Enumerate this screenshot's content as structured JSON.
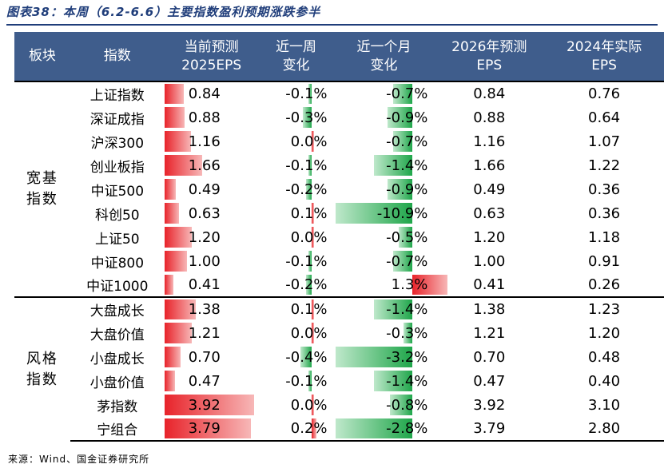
{
  "title": "图表38：本周（6.2-6.6）主要指数盈利预期涨跌参半",
  "headers": {
    "category": "板块",
    "index": "指数",
    "eps2025": [
      "当前预测",
      "2025EPS"
    ],
    "wchg": [
      "近一周",
      "变化"
    ],
    "mchg": [
      "近一个月",
      "变化"
    ],
    "eps2026": [
      "2026年预测",
      "EPS"
    ],
    "eps2024": [
      "2024年实际",
      "EPS"
    ]
  },
  "groups": [
    {
      "name": [
        "宽基",
        "指数"
      ],
      "rows": [
        {
          "name": "上证指数",
          "eps2025": "0.84",
          "wchg": "-0.1%",
          "mchg": "-0.7%",
          "eps2026": "0.84",
          "eps2024": "0.76"
        },
        {
          "name": "深证成指",
          "eps2025": "0.88",
          "wchg": "-0.3%",
          "mchg": "-0.9%",
          "eps2026": "0.88",
          "eps2024": "0.64"
        },
        {
          "name": "沪深300",
          "eps2025": "1.16",
          "wchg": "0.0%",
          "mchg": "-0.7%",
          "eps2026": "1.16",
          "eps2024": "1.07"
        },
        {
          "name": "创业板指",
          "eps2025": "1.66",
          "wchg": "-0.1%",
          "mchg": "-1.4%",
          "eps2026": "1.66",
          "eps2024": "1.22"
        },
        {
          "name": "中证500",
          "eps2025": "0.49",
          "wchg": "-0.2%",
          "mchg": "-0.9%",
          "eps2026": "0.49",
          "eps2024": "0.36"
        },
        {
          "name": "科创50",
          "eps2025": "0.63",
          "wchg": "0.1%",
          "mchg": "-10.9%",
          "eps2026": "0.63",
          "eps2024": "0.36"
        },
        {
          "name": "上证50",
          "eps2025": "1.20",
          "wchg": "0.0%",
          "mchg": "-0.5%",
          "eps2026": "1.20",
          "eps2024": "1.18"
        },
        {
          "name": "中证800",
          "eps2025": "1.00",
          "wchg": "-0.1%",
          "mchg": "-0.7%",
          "eps2026": "1.00",
          "eps2024": "0.91"
        },
        {
          "name": "中证1000",
          "eps2025": "0.41",
          "wchg": "-0.2%",
          "mchg": "1.3%",
          "eps2026": "0.41",
          "eps2024": "0.26"
        }
      ]
    },
    {
      "name": [
        "风格",
        "指数"
      ],
      "rows": [
        {
          "name": "大盘成长",
          "eps2025": "1.38",
          "wchg": "0.1%",
          "mchg": "-1.4%",
          "eps2026": "1.38",
          "eps2024": "1.23"
        },
        {
          "name": "大盘价值",
          "eps2025": "1.21",
          "wchg": "0.0%",
          "mchg": "-0.3%",
          "eps2026": "1.21",
          "eps2024": "1.20"
        },
        {
          "name": "小盘成长",
          "eps2025": "0.70",
          "wchg": "-0.4%",
          "mchg": "-3.2%",
          "eps2026": "0.70",
          "eps2024": "0.48"
        },
        {
          "name": "小盘价值",
          "eps2025": "0.47",
          "wchg": "-0.1%",
          "mchg": "-1.4%",
          "eps2026": "0.47",
          "eps2024": "0.40"
        },
        {
          "name": "茅指数",
          "eps2025": "3.92",
          "wchg": "0.0%",
          "mchg": "-0.8%",
          "eps2026": "3.92",
          "eps2024": "3.10"
        },
        {
          "name": "宁组合",
          "eps2025": "3.79",
          "wchg": "0.2%",
          "mchg": "-2.8%",
          "eps2026": "3.79",
          "eps2024": "2.80"
        }
      ]
    }
  ],
  "colors": {
    "header_bg": "#3f5d8c",
    "eps_bar": "#e8232a",
    "positive_bar": "#e8232a",
    "negative_bar": "#1fa64a"
  },
  "source": "来源：Wind、国金证券研究所"
}
